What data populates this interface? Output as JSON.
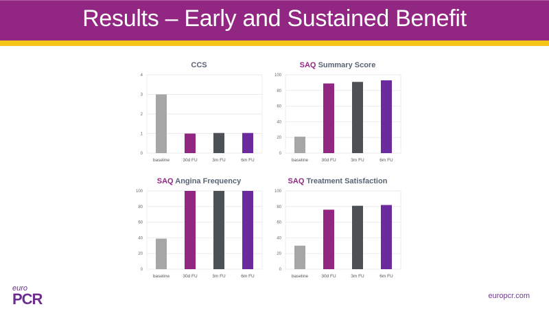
{
  "header": {
    "title": "Results – Early and Sustained Benefit"
  },
  "footer": {
    "logo_top": "euro",
    "logo_main": "PCR",
    "website": "europcr.com"
  },
  "colors": {
    "header": "#922783",
    "stripe": "#f5c518",
    "baseline": "#a6a6a6",
    "d30": "#922783",
    "m3": "#4d5057",
    "m6": "#6b2b9e"
  },
  "chart_data": [
    {
      "type": "bar",
      "title_accent": "",
      "title": "CCS",
      "categories": [
        "baseline",
        "30d FU",
        "3m FU",
        "6m FU"
      ],
      "values": [
        3.0,
        1.0,
        1.03,
        1.03
      ],
      "ylim": [
        0,
        4
      ],
      "yticks": [
        0,
        1,
        2,
        3,
        4
      ],
      "grid": true
    },
    {
      "type": "bar",
      "title_accent": "SAQ",
      "title": "Summary Score",
      "categories": [
        "baseline",
        "30d FU",
        "3m FU",
        "6m FU"
      ],
      "values": [
        21,
        89,
        91,
        93
      ],
      "ylim": [
        0,
        100
      ],
      "yticks": [
        0,
        20,
        40,
        60,
        80,
        100
      ],
      "grid": true
    },
    {
      "type": "bar",
      "title_accent": "SAQ",
      "title": "Angina Frequency",
      "categories": [
        "baseline",
        "30d FU",
        "3m FU",
        "6m FU"
      ],
      "values": [
        39,
        100,
        100,
        100
      ],
      "ylim": [
        0,
        100
      ],
      "yticks": [
        0,
        20,
        40,
        60,
        80,
        100
      ],
      "grid": true
    },
    {
      "type": "bar",
      "title_accent": "SAQ",
      "title": "Treatment Satisfaction",
      "categories": [
        "baseline",
        "30d FU",
        "3m FU",
        "6m FU"
      ],
      "values": [
        30,
        76,
        81,
        82
      ],
      "ylim": [
        0,
        100
      ],
      "yticks": [
        0,
        20,
        40,
        60,
        80,
        100
      ],
      "grid": true
    }
  ]
}
